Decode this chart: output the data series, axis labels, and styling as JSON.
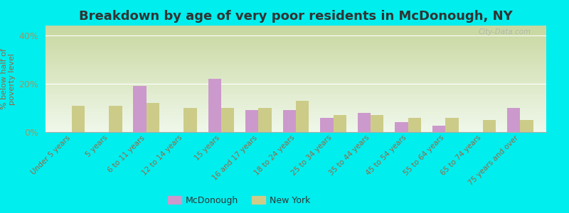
{
  "title": "Breakdown by age of very poor residents in McDonough, NY",
  "ylabel": "% below half of\npoverty level",
  "categories": [
    "Under 5 years",
    "5 years",
    "6 to 11 years",
    "12 to 14 years",
    "15 years",
    "16 and 17 years",
    "18 to 24 years",
    "25 to 34 years",
    "35 to 44 years",
    "45 to 54 years",
    "55 to 64 years",
    "65 to 74 years",
    "75 years and over"
  ],
  "mcdonough": [
    0,
    0,
    19,
    0,
    22,
    9,
    9,
    6,
    8,
    4,
    2.5,
    0,
    10
  ],
  "newyork": [
    11,
    11,
    12,
    10,
    10,
    10,
    13,
    7,
    7,
    6,
    6,
    5,
    5
  ],
  "ylim": [
    0,
    44
  ],
  "yticks": [
    0,
    20,
    40
  ],
  "yticklabels": [
    "0%",
    "20%",
    "40%"
  ],
  "bar_color_mcdonough": "#cc99cc",
  "bar_color_newyork": "#cccc88",
  "bg_outer": "#00eeee",
  "bg_plot_top_color": "#c8d8a0",
  "bg_plot_bottom_color": "#f0f8f0",
  "watermark": "City-Data.com",
  "legend_mcdonough": "McDonough",
  "legend_newyork": "New York",
  "bar_width": 0.35,
  "title_fontsize": 13,
  "xlabel_color": "#996644",
  "ylabel_color": "#996644",
  "ytick_color": "#999966"
}
